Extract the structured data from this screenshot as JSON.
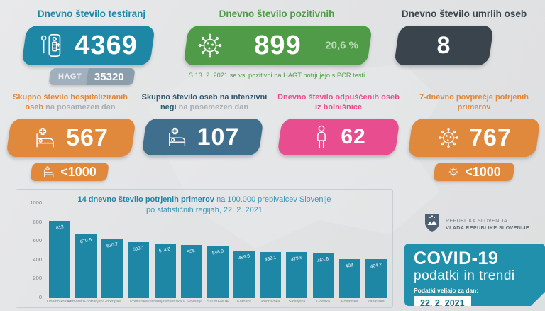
{
  "colors": {
    "teal": "#1d87a5",
    "green": "#4f9b48",
    "dark_gray": "#3a444d",
    "orange": "#e0883b",
    "steel_blue": "#3f6f8c",
    "pink": "#e84e8f",
    "panel_teal": "#2090ac",
    "background": "#e2e3e4"
  },
  "icons": {
    "test_kit": "test-kit-icon",
    "virus": "virus-icon",
    "hospital_bed": "hospital-bed-icon",
    "person": "person-icon",
    "coat_of_arms": "slovenia-coat-of-arms-icon"
  },
  "cards": {
    "tests": {
      "title": "Dnevno število testiranj",
      "value": "4369",
      "hagt_label": "HAGT",
      "hagt_value": "35320"
    },
    "positive": {
      "title": "Dnevno število pozitivnih",
      "value": "899",
      "percent": "20,6 %",
      "note": "S 13. 2. 2021 se vsi pozitivni na HAGT potrjujejo s PCR testi"
    },
    "deaths": {
      "title": "Dnevno število umrlih oseb",
      "value": "8"
    },
    "hospitalized": {
      "title_bold": "Skupno število hospitaliziranih oseb",
      "title_light": "na posamezen dan",
      "value": "567",
      "threshold": "<1000"
    },
    "icu": {
      "title_bold": "Skupno število oseb na intenzivni negi",
      "title_light": "na posamezen dan",
      "value": "107"
    },
    "discharged": {
      "title": "Dnevno število odpuščenih oseb iz bolnišnice",
      "value": "62"
    },
    "avg7day": {
      "title": "7-dnevno povprečje potrjenih primerov",
      "value": "767",
      "threshold": "<1000"
    }
  },
  "chart_data": {
    "type": "bar",
    "title_bold": "14 dnevno število potrjenih primerov",
    "title_rest": " na 100.000 prebivalcev Slovenije po statističnih regijah, 22. 2. 2021",
    "categories": [
      "Obalno-kraška",
      "Primorsko-notranjska",
      "Gorenjska",
      "Pomurska",
      "Osrednjeslovenska",
      "JV Slovenija",
      "SLOVENIJA",
      "Koroška",
      "Podravska",
      "Savinjska",
      "Goriška",
      "Posavska",
      "Zasavska"
    ],
    "values": [
      812,
      670.5,
      620.7,
      590.1,
      574.8,
      556,
      548.9,
      499.8,
      482.1,
      479.6,
      463.6,
      408,
      404.2
    ],
    "xlabel": "",
    "ylabel": "",
    "ylim": [
      0,
      1000
    ],
    "yticks": [
      0,
      200,
      400,
      600,
      800,
      1000
    ],
    "bar_color": "#1d87a5",
    "grid": false,
    "legend": false
  },
  "government": {
    "line1": "REPUBLIKA SLOVENIJA",
    "line2": "VLADA REPUBLIKE SLOVENIJE"
  },
  "info_panel": {
    "title": "COVID-19",
    "subtitle": "podatki in trendi",
    "date_label": "Podatki veljajo za dan:",
    "date": "22. 2. 2021"
  }
}
